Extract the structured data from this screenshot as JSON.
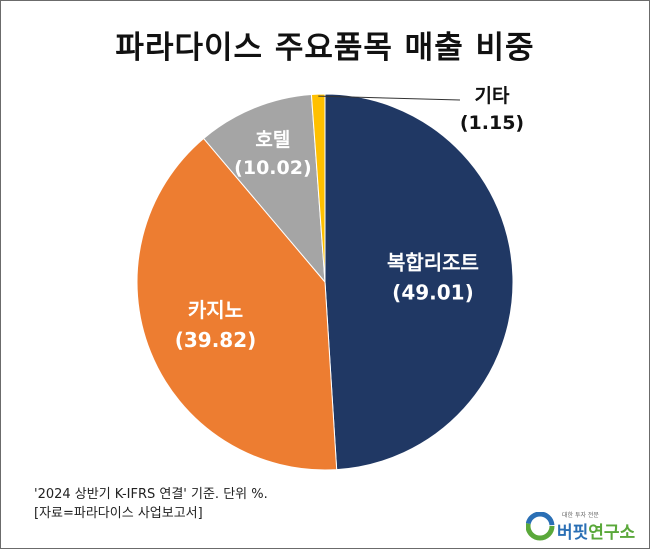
{
  "chart_data": {
    "type": "pie",
    "title": "파라다이스 주요품목 매출 비중",
    "slices": [
      {
        "name": "복합리조트",
        "value": 49.01,
        "value_label": "(49.01)",
        "color": "#203864"
      },
      {
        "name": "카지노",
        "value": 39.82,
        "value_label": "(39.82)",
        "color": "#ed7d31"
      },
      {
        "name": "호텔",
        "value": 10.02,
        "value_label": "(10.02)",
        "color": "#a5a5a5"
      },
      {
        "name": "기타",
        "value": 1.15,
        "value_label": "(1.15)",
        "color": "#ffc000"
      }
    ],
    "start": "12 o'clock",
    "direction": "clockwise"
  },
  "notes": {
    "basis": "'2024 상반기 K-IFRS 연결' 기준. 단위 %.",
    "source": "[자료=파라다이스 사업보고서]"
  },
  "brand": {
    "tagline": "대한 투자 전문",
    "name_part1": "버핏",
    "name_part2": "연구소",
    "icon": "buffett-lab-logo-icon"
  }
}
